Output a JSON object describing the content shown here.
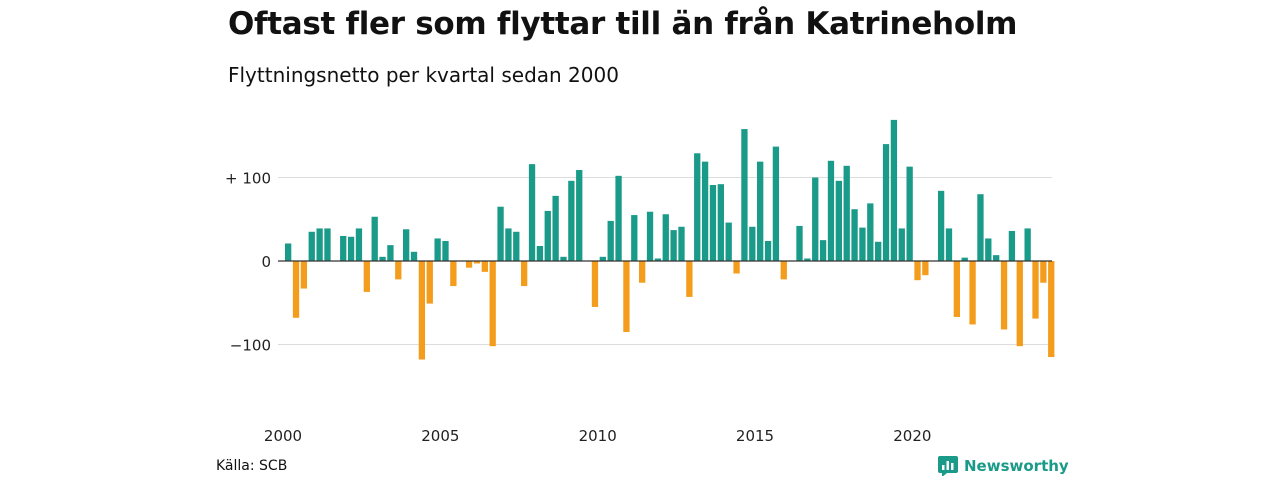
{
  "title": "Oftast fler som flyttar till än från Katrineholm",
  "subtitle": "Flyttningsnetto per kvartal sedan 2000",
  "source": "Källa: SCB",
  "brand": "Newsworthy",
  "colors": {
    "positive": "#1a9a88",
    "negative": "#f49c1c",
    "grid": "#dddddd",
    "zero": "#333333"
  },
  "chart_data": {
    "type": "bar",
    "title": "Oftast fler som flyttar till än från Katrineholm",
    "subtitle": "Flyttningsnetto per kvartal sedan 2000",
    "xlabel": "",
    "ylabel": "",
    "ylim": [
      -130,
      170
    ],
    "yticks": [
      100,
      0,
      -100
    ],
    "ytick_labels": [
      "+ 100",
      "0",
      "−100"
    ],
    "xticks": [
      2000,
      2005,
      2010,
      2015,
      2020
    ],
    "start_year": 2000,
    "grid": true,
    "values": [
      21,
      -68,
      -33,
      35,
      39,
      39,
      0,
      30,
      29,
      39,
      -37,
      53,
      5,
      19,
      -22,
      38,
      11,
      -118,
      -51,
      27,
      24,
      -30,
      0,
      -8,
      -3,
      -13,
      -102,
      65,
      39,
      35,
      -30,
      116,
      18,
      60,
      78,
      5,
      96,
      109,
      0,
      -55,
      5,
      48,
      102,
      -85,
      55,
      -26,
      59,
      3,
      56,
      37,
      41,
      -43,
      129,
      119,
      91,
      92,
      46,
      -15,
      158,
      41,
      119,
      24,
      137,
      -22,
      0,
      42,
      3,
      100,
      25,
      120,
      96,
      114,
      62,
      40,
      69,
      23,
      140,
      169,
      39,
      113,
      -23,
      -17,
      0,
      84,
      39,
      -67,
      4,
      -76,
      80,
      27,
      7,
      -82,
      36,
      -102,
      39,
      -69,
      -26,
      -115
    ]
  }
}
